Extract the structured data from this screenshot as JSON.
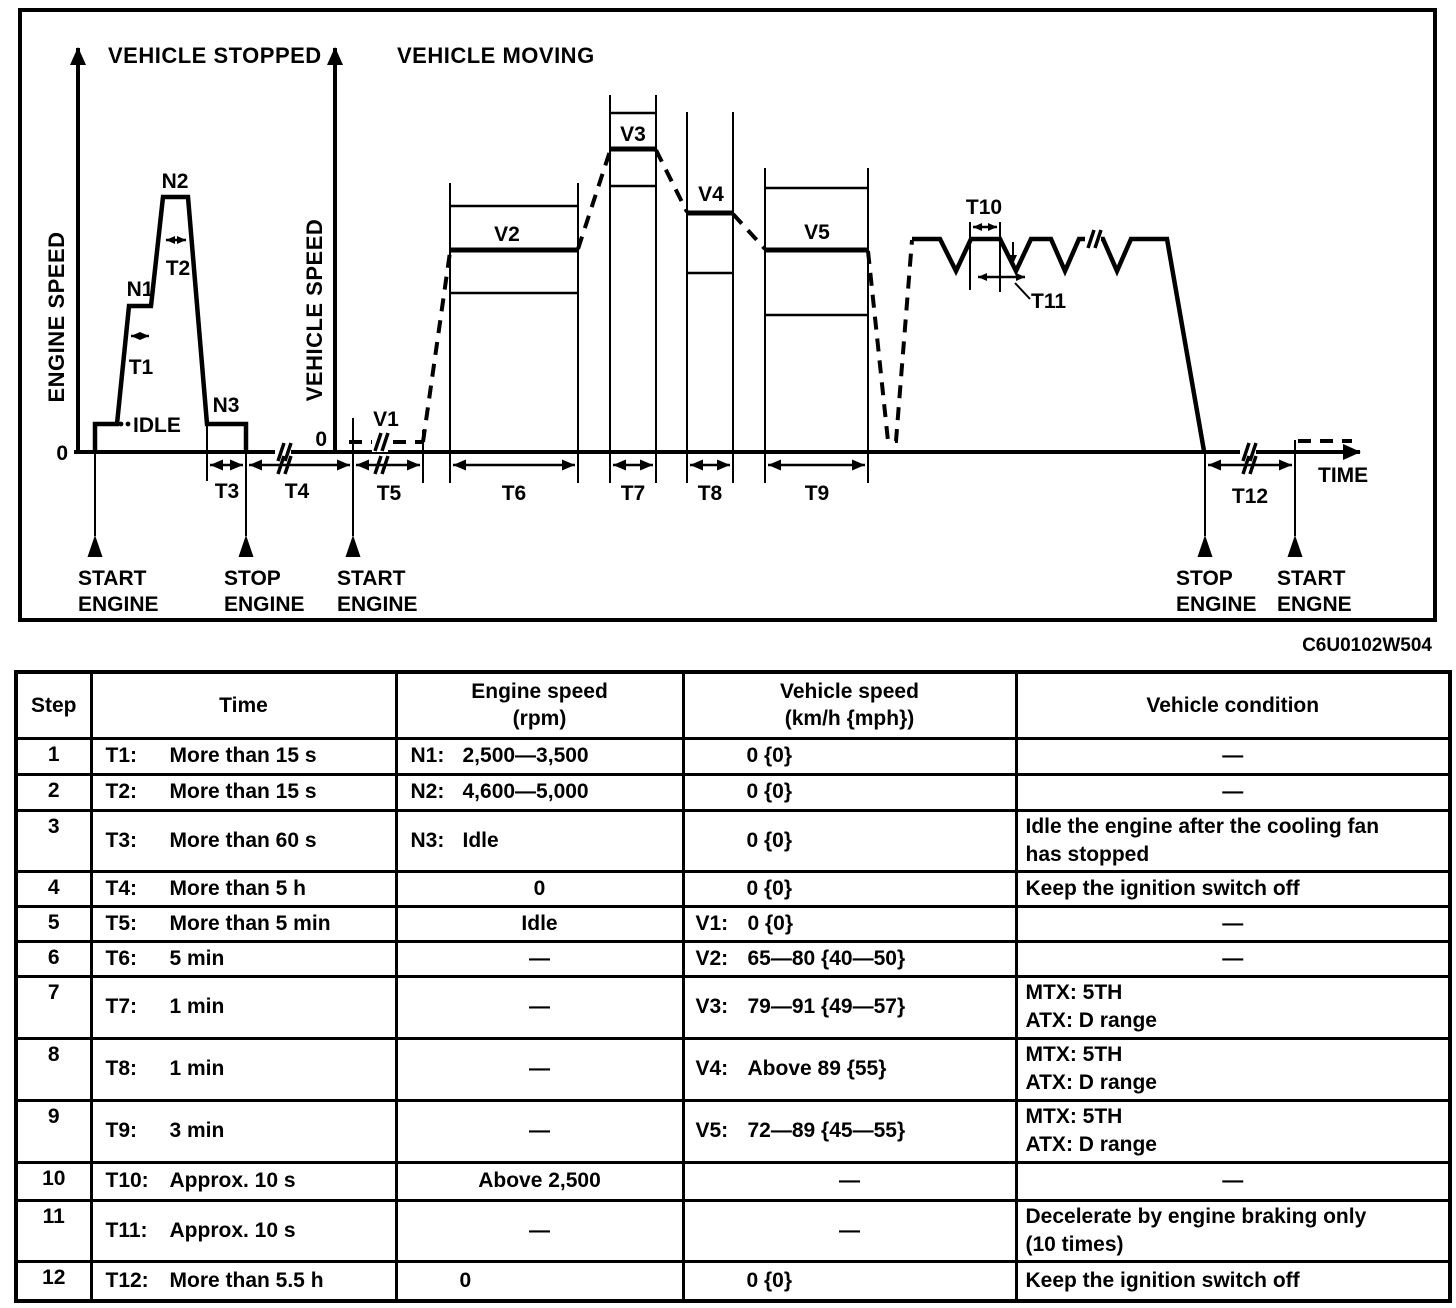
{
  "diagram": {
    "left_title": "VEHICLE STOPPED",
    "right_title": "VEHICLE MOVING",
    "left_axis_label": "ENGINE SPEED",
    "right_axis_label": "VEHICLE SPEED",
    "zero_left": "0",
    "zero_right": "0",
    "idle_label": "IDLE",
    "time_label": "TIME",
    "n1": "N1",
    "n2": "N2",
    "n3": "N3",
    "v1": "V1",
    "v2": "V2",
    "v3": "V3",
    "v4": "V4",
    "v5": "V5",
    "t1": "T1",
    "t2": "T2",
    "t3": "T3",
    "t4": "T4",
    "t5": "T5",
    "t6": "T6",
    "t7": "T7",
    "t8": "T8",
    "t9": "T9",
    "t10": "T10",
    "t11": "T11",
    "t12": "T12",
    "events": {
      "start1": {
        "l1": "START",
        "l2": "ENGINE"
      },
      "stop1": {
        "l1": "STOP",
        "l2": "ENGINE"
      },
      "start2": {
        "l1": "START",
        "l2": "ENGINE"
      },
      "stop2": {
        "l1": "STOP",
        "l2": "ENGINE"
      },
      "start3": {
        "l1": "START",
        "l2": "ENGNE"
      }
    },
    "figure_code": "C6U0102W504"
  },
  "table": {
    "headers": {
      "step": "Step",
      "time": "Time",
      "engine_l1": "Engine speed",
      "engine_l2": "(rpm)",
      "vehicle_l1": "Vehicle speed",
      "vehicle_l2": "(km/h {mph})",
      "condition": "Vehicle condition"
    },
    "rows": [
      {
        "step": "1",
        "time_label": "T1:",
        "time": "More than 15 s",
        "engine_label": "N1:",
        "engine": "2,500—3,500",
        "vehicle_label": "",
        "vehicle": "0 {0}",
        "condition": "—"
      },
      {
        "step": "2",
        "time_label": "T2:",
        "time": "More than 15 s",
        "engine_label": "N2:",
        "engine": "4,600—5,000",
        "vehicle_label": "",
        "vehicle": "0 {0}",
        "condition": "—"
      },
      {
        "step": "3",
        "time_label": "T3:",
        "time": "More than 60 s",
        "engine_label": "N3:",
        "engine": "Idle",
        "vehicle_label": "",
        "vehicle": "0 {0}",
        "condition": "Idle the engine after the cooling fan\nhas stopped"
      },
      {
        "step": "4",
        "time_label": "T4:",
        "time": "More than 5 h",
        "engine_label": "",
        "engine": "0",
        "vehicle_label": "",
        "vehicle": "0 {0}",
        "condition": "Keep the ignition switch off"
      },
      {
        "step": "5",
        "time_label": "T5:",
        "time": "More than 5 min",
        "engine_label": "",
        "engine": "Idle",
        "vehicle_label": "V1:",
        "vehicle": "0 {0}",
        "condition": "—"
      },
      {
        "step": "6",
        "time_label": "T6:",
        "time": "5 min",
        "engine_label": "",
        "engine": "—",
        "vehicle_label": "V2:",
        "vehicle": "65—80 {40—50}",
        "condition": "—"
      },
      {
        "step": "7",
        "time_label": "T7:",
        "time": "1 min",
        "engine_label": "",
        "engine": "—",
        "vehicle_label": "V3:",
        "vehicle": "79—91 {49—57}",
        "condition": "MTX: 5TH\nATX: D range"
      },
      {
        "step": "8",
        "time_label": "T8:",
        "time": "1 min",
        "engine_label": "",
        "engine": "—",
        "vehicle_label": "V4:",
        "vehicle": "Above 89 {55}",
        "condition": "MTX: 5TH\nATX: D range"
      },
      {
        "step": "9",
        "time_label": "T9:",
        "time": "3 min",
        "engine_label": "",
        "engine": "—",
        "vehicle_label": "V5:",
        "vehicle": "72—89 {45—55}",
        "condition": "MTX: 5TH\nATX: D range"
      },
      {
        "step": "10",
        "time_label": "T10:",
        "time": "Approx. 10 s",
        "engine_label": "",
        "engine": "Above 2,500",
        "vehicle_label": "",
        "vehicle": "—",
        "condition": "—"
      },
      {
        "step": "11",
        "time_label": "T11:",
        "time": "Approx. 10 s",
        "engine_label": "",
        "engine": "—",
        "vehicle_label": "",
        "vehicle": "—",
        "condition": "Decelerate by engine braking only\n(10 times)"
      },
      {
        "step": "12",
        "time_label": "T12:",
        "time": "More than 5.5 h",
        "engine_label": "",
        "engine": "0",
        "vehicle_label": "",
        "vehicle": "0 {0}",
        "condition": "Keep the ignition switch off"
      }
    ]
  }
}
